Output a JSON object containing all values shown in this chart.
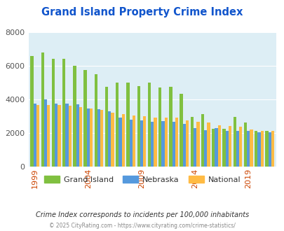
{
  "title": "Grand Island Property Crime Index",
  "years": [
    1999,
    2000,
    2001,
    2002,
    2003,
    2004,
    2005,
    2006,
    2007,
    2008,
    2009,
    2010,
    2011,
    2012,
    2013,
    2014,
    2015,
    2016,
    2017,
    2018,
    2019,
    2020,
    2021
  ],
  "grand_island": [
    6600,
    6800,
    6400,
    6400,
    6000,
    5750,
    5500,
    4750,
    5000,
    5000,
    4800,
    5000,
    4700,
    4750,
    4350,
    2950,
    3100,
    2250,
    2250,
    2950,
    2600,
    2100,
    2100
  ],
  "nebraska": [
    3750,
    4000,
    3750,
    3750,
    3700,
    3450,
    3400,
    3300,
    2900,
    2800,
    2750,
    2650,
    2700,
    2650,
    2550,
    2300,
    2150,
    2300,
    2100,
    2100,
    2100,
    2050,
    2050
  ],
  "national": [
    3650,
    3650,
    3650,
    3600,
    3550,
    3450,
    3350,
    3200,
    3100,
    3050,
    3000,
    2900,
    2900,
    2900,
    2750,
    2650,
    2600,
    2450,
    2400,
    2350,
    2200,
    2100,
    2100
  ],
  "grand_island_color": "#80c040",
  "nebraska_color": "#5599dd",
  "national_color": "#ffbb44",
  "bg_color": "#ddeef5",
  "ylim": [
    0,
    8000
  ],
  "yticks": [
    0,
    2000,
    4000,
    6000,
    8000
  ],
  "xtick_labels": [
    "1999",
    "2004",
    "2009",
    "2014",
    "2019"
  ],
  "xtick_positions": [
    1999,
    2004,
    2009,
    2014,
    2019
  ],
  "subtitle": "Crime Index corresponds to incidents per 100,000 inhabitants",
  "footer": "© 2025 CityRating.com - https://www.cityrating.com/crime-statistics/",
  "legend_labels": [
    "Grand Island",
    "Nebraska",
    "National"
  ]
}
